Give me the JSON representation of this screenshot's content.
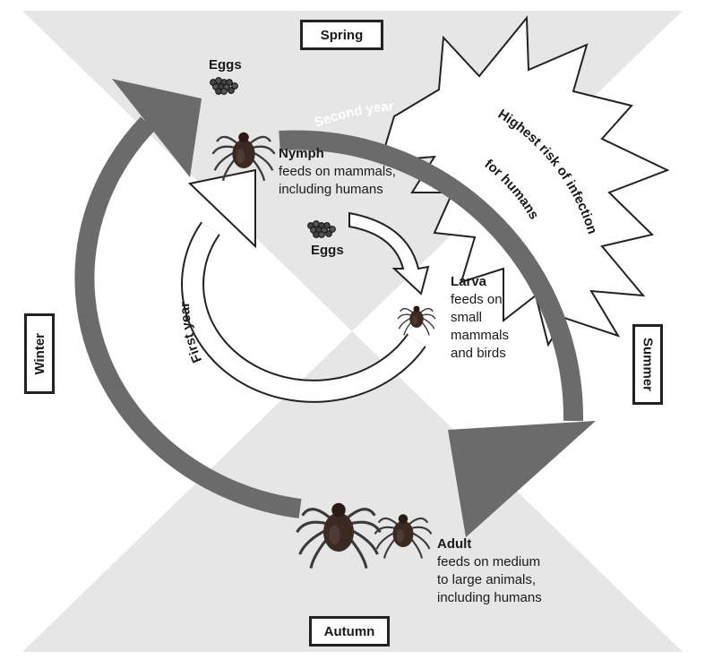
{
  "seasons": {
    "spring": "Spring",
    "summer": "Summer",
    "autumn": "Autumn",
    "winter": "Winter"
  },
  "stages": {
    "eggs_top": {
      "name": "Eggs"
    },
    "eggs_center": {
      "name": "Eggs"
    },
    "nymph": {
      "name": "Nymph",
      "desc": [
        "feeds on mammals,",
        "including humans"
      ]
    },
    "larva": {
      "name": "Larva",
      "desc": [
        "feeds on",
        "small",
        "mammals",
        "and birds"
      ]
    },
    "adult": {
      "name": "Adult",
      "desc": [
        "feeds on medium",
        "to large animals,",
        "including humans"
      ]
    }
  },
  "arrows": {
    "first_year": "First year",
    "second_year": "Second year"
  },
  "risk_burst": {
    "line1": "Highest risk of infection",
    "line2": "for humans"
  },
  "colors": {
    "arrow_fill": "#6b6b6b",
    "background_gray": "#e6e6e6",
    "tick_body": "#3a2a22"
  }
}
